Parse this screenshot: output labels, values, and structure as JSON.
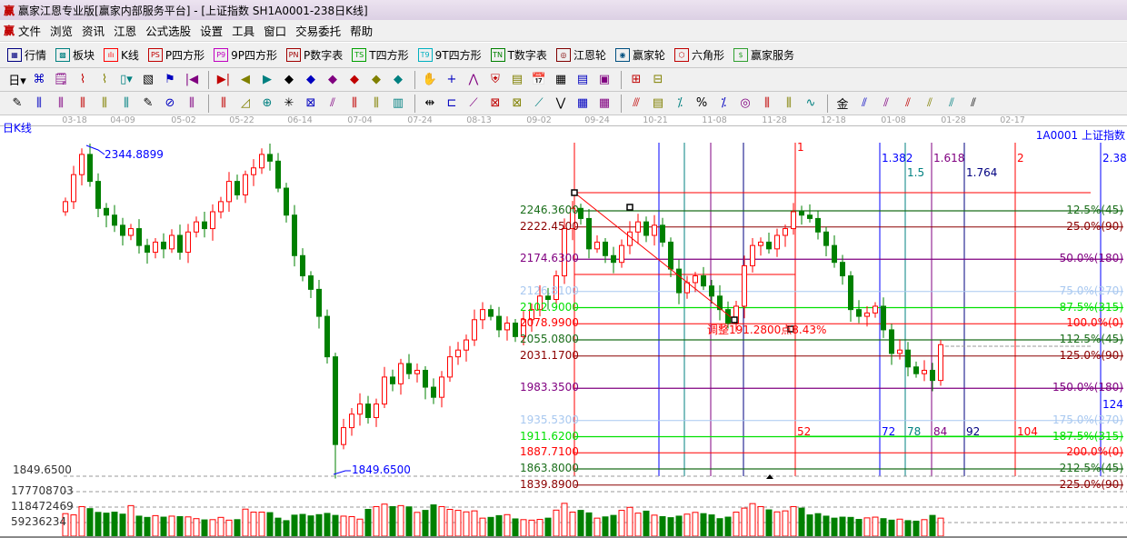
{
  "window": {
    "title": "赢家江恩专业版[赢家内部服务平台] - [上证指数  SH1A0001-238日K线]",
    "logo": "赢"
  },
  "menu": [
    "文件",
    "浏览",
    "资讯",
    "江恩",
    "公式选股",
    "设置",
    "工具",
    "窗口",
    "交易委托",
    "帮助"
  ],
  "toolbar1": [
    {
      "icon": "grid-table-icon",
      "glyph": "▦",
      "label": "行情",
      "color": "#000080"
    },
    {
      "icon": "blocks-icon",
      "glyph": "▩",
      "label": "板块",
      "color": "#008080"
    },
    {
      "icon": "candles-icon",
      "glyph": "ılı",
      "label": "K线",
      "color": "#ff0000"
    },
    {
      "icon": "ps-icon",
      "glyph": "PS",
      "label": "P四方形",
      "color": "#c00000"
    },
    {
      "icon": "p9-icon",
      "glyph": "P9",
      "label": "9P四方形",
      "color": "#c000c0"
    },
    {
      "icon": "pn-icon",
      "glyph": "PN",
      "label": "P数字表",
      "color": "#a00000"
    },
    {
      "icon": "ts-icon",
      "glyph": "TS",
      "label": "T四方形",
      "color": "#00a000"
    },
    {
      "icon": "t9-icon",
      "glyph": "T9",
      "label": "9T四方形",
      "color": "#00b0c0"
    },
    {
      "icon": "tn-icon",
      "glyph": "TN",
      "label": "T数字表",
      "color": "#008000"
    },
    {
      "icon": "gann-wheel-icon",
      "glyph": "◎",
      "label": "江恩轮",
      "color": "#800000"
    },
    {
      "icon": "winner-wheel-icon",
      "glyph": "◉",
      "label": "赢家轮",
      "color": "#005080"
    },
    {
      "icon": "hexagon-icon",
      "glyph": "⬡",
      "label": "六角形",
      "color": "#c00000"
    },
    {
      "icon": "dollar-icon",
      "glyph": "$",
      "label": "赢家服务",
      "color": "#30a030"
    }
  ],
  "toolbar2": [
    "日▾",
    "⌘",
    "🗒",
    "⌇",
    "⌇",
    "▯▾",
    "▧",
    "⚑",
    "|◀",
    "▶|",
    "◀",
    "▶",
    "◆",
    "◆",
    "◆",
    "◆",
    "◆",
    "◆",
    "✋",
    "+",
    "⋀",
    "⛨",
    "▤",
    "📅",
    "▦",
    "▤",
    "▣",
    "⊞",
    "⊟"
  ],
  "toolbar3": [
    "✎",
    "⫼",
    "⫼",
    "⫼",
    "⫼",
    "⫼",
    "✎",
    "⊘",
    "⫼",
    "⫼",
    "◿",
    "⊕",
    "✳",
    "⊠",
    "⫽",
    "⫼",
    "⫼",
    "▥",
    "⇹",
    "⊏",
    "⟋",
    "⊠",
    "⊠",
    "⟋",
    "⋁",
    "▦",
    "▦",
    "⫻",
    "▤",
    "⁒",
    "%",
    "⁒",
    "◎",
    "⫼",
    "⫼",
    "∿",
    "金",
    "⫽",
    "⫽",
    "⫽",
    "⫽",
    "⫽",
    "⫽"
  ],
  "dates": [
    "03-18",
    "04-09",
    "05-02",
    "05-22",
    "06-14",
    "07-04",
    "07-24",
    "08-13",
    "09-02",
    "09-24",
    "10-21",
    "11-08",
    "11-28",
    "12-18",
    "01-08",
    "01-28",
    "02-17"
  ],
  "chart_label": "日K线",
  "symbol": "1A0001  上证指数",
  "high_label": "2344.8899",
  "low_label": "1849.6500",
  "axis_low": "1849.6500",
  "volume_axis": [
    "177708703",
    "118472469",
    "59236234"
  ],
  "adjust_note": "调整191.2800点8.43%",
  "gann_levels": [
    {
      "price": "2246.3600",
      "pct": "12.5%(45)",
      "color": "#1a6e1a"
    },
    {
      "price": "2222.4500",
      "pct": "25.0%(90)",
      "color": "#8b0000"
    },
    {
      "price": "2174.6300",
      "pct": "50.0%(180)",
      "color": "#800080"
    },
    {
      "price": "2126.8100",
      "pct": "75.0%(270)",
      "color": "#a8c8f0"
    },
    {
      "price": "2102.9000",
      "pct": "87.5%(315)",
      "color": "#00e000"
    },
    {
      "price": "2078.9900",
      "pct": "100.0%(0)",
      "color": "#ff0000"
    },
    {
      "price": "2055.0800",
      "pct": "112.5%(45)",
      "color": "#1a6e1a"
    },
    {
      "price": "2031.1700",
      "pct": "125.0%(90)",
      "color": "#8b0000"
    },
    {
      "price": "1983.3500",
      "pct": "150.0%(180)",
      "color": "#800080"
    },
    {
      "price": "1935.5300",
      "pct": "175.0%(270)",
      "color": "#a8c8f0"
    },
    {
      "price": "1911.6200",
      "pct": "187.5%(315)",
      "color": "#00e000"
    },
    {
      "price": "1887.7100",
      "pct": "200.0%(0)",
      "color": "#ff0000"
    },
    {
      "price": "1863.8000",
      "pct": "212.5%(45)",
      "color": "#1a6e1a"
    },
    {
      "price": "1839.8900",
      "pct": "225.0%(90)",
      "color": "#8b0000"
    }
  ],
  "time_lines": [
    {
      "ratio": "",
      "count": "",
      "color": "#ff0000"
    },
    {
      "ratio": "",
      "count": "",
      "color": "#0000ff"
    },
    {
      "ratio": "",
      "count": "",
      "color": "#008080"
    },
    {
      "ratio": "",
      "count": "",
      "color": "#800080"
    },
    {
      "ratio": "",
      "count": "",
      "color": "#000080"
    },
    {
      "ratio": "1",
      "count": "52",
      "color": "#ff0000"
    },
    {
      "ratio": "1.382",
      "count": "72",
      "color": "#0000ff"
    },
    {
      "ratio": "1.5",
      "count": "78",
      "color": "#008080"
    },
    {
      "ratio": "1.618",
      "count": "84",
      "color": "#800080"
    },
    {
      "ratio": "1.764",
      "count": "92",
      "color": "#000080"
    },
    {
      "ratio": "2",
      "count": "104",
      "color": "#ff0000"
    },
    {
      "ratio": "2.382",
      "count": "124",
      "color": "#0000ff"
    }
  ],
  "colors": {
    "up": "#ff0000",
    "down": "#008000",
    "accent": "#0000ff"
  },
  "chart_data": {
    "type": "candlestick",
    "closes": [
      2260,
      2300,
      2330,
      2290,
      2250,
      2240,
      2225,
      2210,
      2220,
      2195,
      2185,
      2200,
      2190,
      2210,
      2185,
      2215,
      2230,
      2220,
      2245,
      2260,
      2290,
      2270,
      2300,
      2310,
      2330,
      2320,
      2280,
      2240,
      2180,
      2150,
      2130,
      2090,
      2030,
      1900,
      1925,
      1945,
      1960,
      1940,
      1960,
      2000,
      1990,
      2020,
      2005,
      2010,
      1985,
      1970,
      2000,
      2030,
      2040,
      2055,
      2085,
      2100,
      2090,
      2070,
      2080,
      2060,
      2085,
      2100,
      2120,
      2115,
      2150,
      2220,
      2250,
      2235,
      2190,
      2200,
      2180,
      2170,
      2195,
      2215,
      2230,
      2210,
      2225,
      2200,
      2160,
      2125,
      2140,
      2150,
      2135,
      2120,
      2100,
      2080,
      2105,
      2165,
      2195,
      2200,
      2190,
      2210,
      2220,
      2245,
      2240,
      2235,
      2215,
      2195,
      2170,
      2150,
      2100,
      2090,
      2095,
      2105,
      2070,
      2035,
      2040,
      2015,
      2005,
      2010,
      1995,
      2048
    ],
    "volumes": [
      90000000,
      85000000,
      118000000,
      110000000,
      95000000,
      92000000,
      96000000,
      88000000,
      122000000,
      80000000,
      75000000,
      82000000,
      76000000,
      80000000,
      78000000,
      77000000,
      70000000,
      65000000,
      66000000,
      75000000,
      64000000,
      66000000,
      108000000,
      96000000,
      96000000,
      94000000,
      72000000,
      62000000,
      84000000,
      87000000,
      81000000,
      86000000,
      91000000,
      83000000,
      80000000,
      78000000,
      68000000,
      107000000,
      118000000,
      128000000,
      118000000,
      122000000,
      117000000,
      95000000,
      103000000,
      125000000,
      118000000,
      107000000,
      103000000,
      97000000,
      101000000,
      72000000,
      75000000,
      82000000,
      86000000,
      69000000,
      66000000,
      64000000,
      67000000,
      72000000,
      104000000,
      131000000,
      96000000,
      103000000,
      93000000,
      72000000,
      77000000,
      83000000,
      103000000,
      115000000,
      92000000,
      100000000,
      84000000,
      78000000,
      74000000,
      80000000,
      88000000,
      95000000,
      90000000,
      85000000,
      70000000,
      76000000,
      96000000,
      112000000,
      130000000,
      118000000,
      105000000,
      97000000,
      101000000,
      118000000,
      112000000,
      85000000,
      90000000,
      80000000,
      72000000,
      76000000,
      75000000,
      67000000,
      73000000,
      76000000,
      70000000,
      64000000,
      68000000,
      62000000,
      60000000,
      66000000,
      83000000,
      72000000
    ]
  }
}
